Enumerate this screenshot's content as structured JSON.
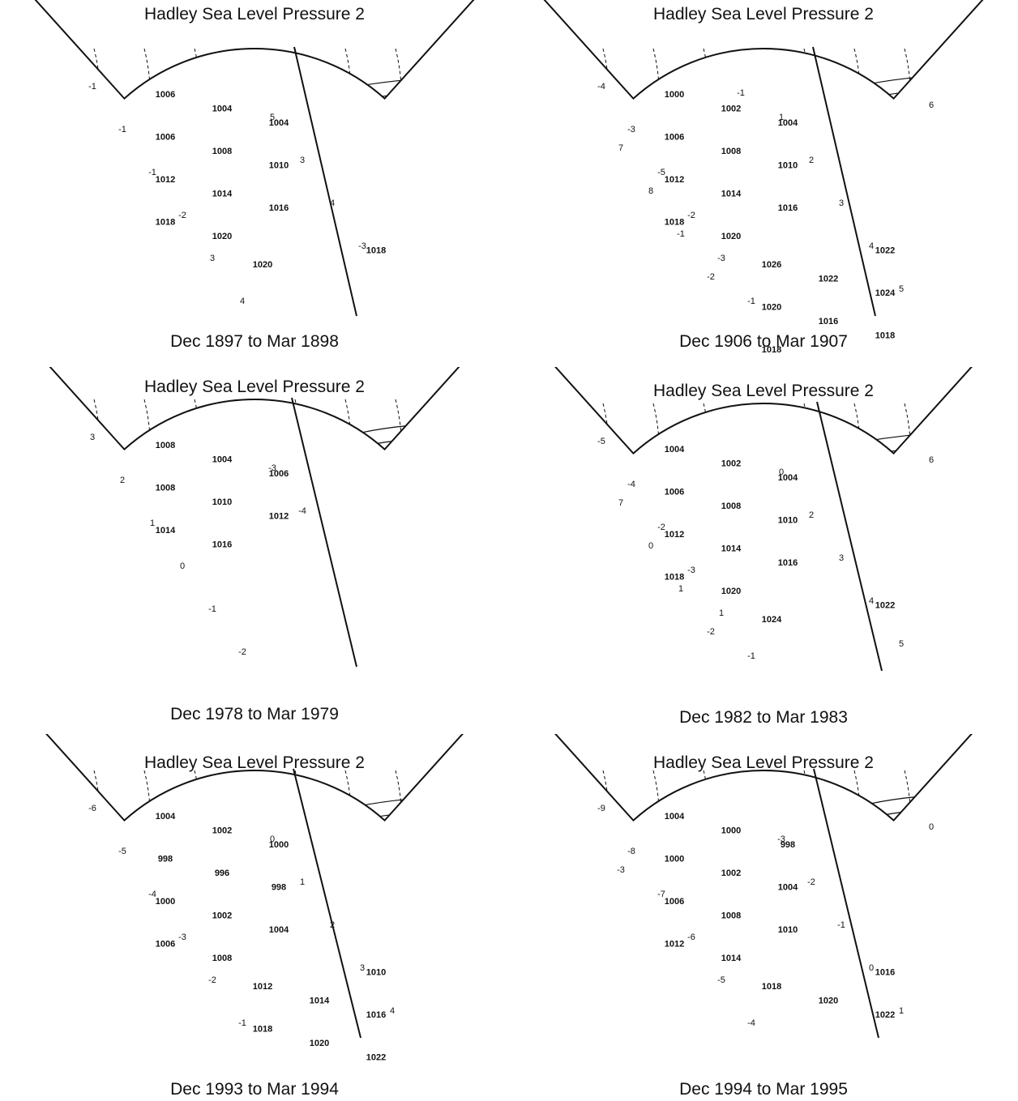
{
  "panels": [
    {
      "title": "Hadley Sea Level Pressure 2",
      "caption": "Dec 1897 to Mar 1898",
      "isobar_labels": [
        "1006",
        "1004",
        "1004",
        "1006",
        "1008",
        "1010",
        "1012",
        "1014",
        "1016",
        "1018",
        "1020",
        "1018",
        "1020"
      ],
      "anomaly_labels": [
        "-1",
        "-1",
        "-1",
        "-2",
        "3",
        "4",
        "5",
        "3",
        "4",
        "-3"
      ]
    },
    {
      "title": "Hadley Sea Level Pressure 2",
      "caption": "Dec 1906 to Mar 1907",
      "isobar_labels": [
        "1000",
        "1002",
        "1004",
        "1006",
        "1008",
        "1010",
        "1012",
        "1014",
        "1016",
        "1018",
        "1020",
        "1022",
        "1026",
        "1022",
        "1024",
        "1020",
        "1016",
        "1018",
        "1018"
      ],
      "anomaly_labels": [
        "-4",
        "-3",
        "-5",
        "-2",
        "-3",
        "-1",
        "1",
        "2",
        "3",
        "4",
        "5",
        "6",
        "7",
        "8",
        "-1",
        "-2",
        "-1"
      ]
    },
    {
      "title": "Hadley Sea Level Pressure 2",
      "caption": "Dec 1978 to Mar 1979",
      "isobar_labels": [
        "1008",
        "1004",
        "1006",
        "1008",
        "1010",
        "1012",
        "1014",
        "1016"
      ],
      "anomaly_labels": [
        "3",
        "2",
        "1",
        "0",
        "-1",
        "-2",
        "-3",
        "-4"
      ]
    },
    {
      "title": "Hadley Sea Level Pressure 2",
      "caption": "Dec 1982 to Mar 1983",
      "isobar_labels": [
        "1004",
        "1002",
        "1004",
        "1006",
        "1008",
        "1010",
        "1012",
        "1014",
        "1016",
        "1018",
        "1020",
        "1022",
        "1024"
      ],
      "anomaly_labels": [
        "-5",
        "-4",
        "-2",
        "-3",
        "1",
        "-1",
        "0",
        "2",
        "3",
        "4",
        "5",
        "6",
        "7",
        "0",
        "1",
        "-2"
      ]
    },
    {
      "title": "Hadley Sea Level Pressure 2",
      "caption": "Dec 1993 to Mar 1994",
      "isobar_labels": [
        "1004",
        "1002",
        "1000",
        "998",
        "996",
        "998",
        "1000",
        "1002",
        "1004",
        "1006",
        "1008",
        "1010",
        "1012",
        "1014",
        "1016",
        "1018",
        "1020",
        "1022"
      ],
      "anomaly_labels": [
        "-6",
        "-5",
        "-4",
        "-3",
        "-2",
        "-1",
        "0",
        "1",
        "2",
        "3",
        "4"
      ]
    },
    {
      "title": "Hadley Sea Level Pressure 2",
      "caption": "Dec 1994 to Mar 1995",
      "isobar_labels": [
        "1004",
        "1000",
        "998",
        "1000",
        "1002",
        "1004",
        "1006",
        "1008",
        "1010",
        "1012",
        "1014",
        "1016",
        "1018",
        "1020",
        "1022"
      ],
      "anomaly_labels": [
        "-9",
        "-8",
        "-7",
        "-6",
        "-5",
        "-4",
        "-3",
        "-2",
        "-1",
        "0",
        "1",
        "0",
        "-3"
      ]
    }
  ]
}
